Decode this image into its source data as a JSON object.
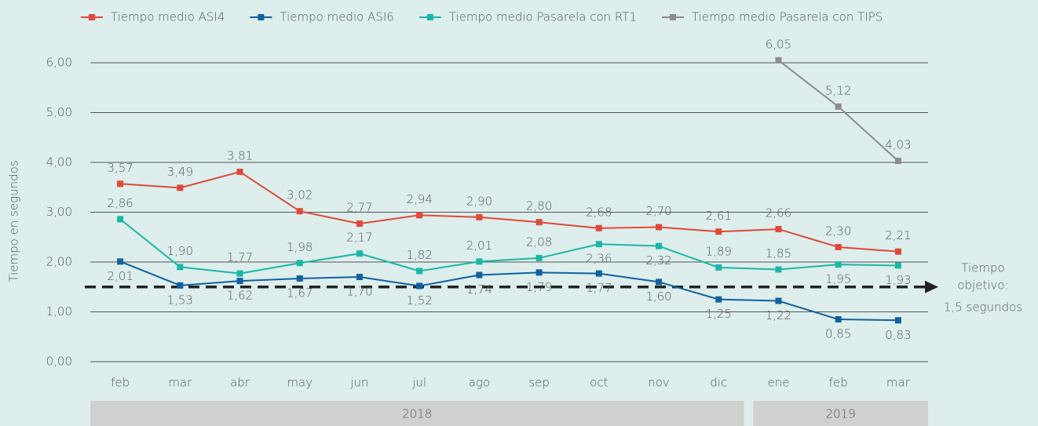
{
  "chart_data": {
    "type": "line",
    "y_label": "Tiempo en segundos",
    "categories": [
      "feb",
      "mar",
      "abr",
      "may",
      "jun",
      "jul",
      "ago",
      "sep",
      "oct",
      "nov",
      "dic",
      "ene",
      "feb",
      "mar"
    ],
    "groups": [
      {
        "label": "2018",
        "count": 11
      },
      {
        "label": "2019",
        "count": 3
      }
    ],
    "ylim": [
      0,
      6
    ],
    "yticks": [
      {
        "value": 0,
        "label": "0,00"
      },
      {
        "value": 1,
        "label": "1,00"
      },
      {
        "value": 2,
        "label": "2,00"
      },
      {
        "value": 3,
        "label": "3,00"
      },
      {
        "value": 4,
        "label": "4,00"
      },
      {
        "value": 5,
        "label": "5,00"
      },
      {
        "value": 6,
        "label": "6,00"
      }
    ],
    "grid": true,
    "target": {
      "value": 1.5,
      "label": [
        "Tiempo",
        "objetivo:",
        "1,5 segundos"
      ]
    },
    "series": [
      {
        "name": "Tiempo medio ASI4",
        "color": "#e0483a",
        "values": [
          3.57,
          3.49,
          3.81,
          3.02,
          2.77,
          2.94,
          2.9,
          2.8,
          2.68,
          2.7,
          2.61,
          2.66,
          2.3,
          2.21
        ],
        "value_labels": [
          "3,57",
          "3,49",
          "3,81",
          "3,02",
          "2,77",
          "2,94",
          "2,90",
          "2,80",
          "2,68",
          "2,70",
          "2,61",
          "2,66",
          "2,30",
          "2,21"
        ]
      },
      {
        "name": "Tiempo medio ASI6",
        "color": "#11619f",
        "values": [
          2.01,
          1.53,
          1.62,
          1.67,
          1.7,
          1.52,
          1.74,
          1.79,
          1.77,
          1.6,
          1.25,
          1.22,
          0.85,
          0.83
        ],
        "value_labels": [
          "2,01",
          "1,53",
          "1,62",
          "1,67",
          "1,70",
          "1,52",
          "1,74",
          "1,79",
          "1,77",
          "1,60",
          "1,25",
          "1,22",
          "0,85",
          "0,83"
        ]
      },
      {
        "name": "Tiempo medio Pasarela con RT1",
        "color": "#1bb7a6",
        "values": [
          2.86,
          1.9,
          1.77,
          1.98,
          2.17,
          1.82,
          2.01,
          2.08,
          2.36,
          2.32,
          1.89,
          1.85,
          1.95,
          1.93
        ],
        "value_labels": [
          "2,86",
          "1,90",
          "1,77",
          "1,98",
          "2,17",
          "1,82",
          "2,01",
          "2,08",
          "2,36",
          "2,32",
          "1,89",
          "1,85",
          "1,95",
          "1,93"
        ]
      },
      {
        "name": "Tiempo medio Pasarela con TIPS",
        "color": "#8c8c8c",
        "values": [
          null,
          null,
          null,
          null,
          null,
          null,
          null,
          null,
          null,
          null,
          null,
          6.05,
          5.12,
          4.03
        ],
        "value_labels": [
          null,
          null,
          null,
          null,
          null,
          null,
          null,
          null,
          null,
          null,
          null,
          "6,05",
          "5,12",
          "4,03"
        ]
      }
    ]
  }
}
